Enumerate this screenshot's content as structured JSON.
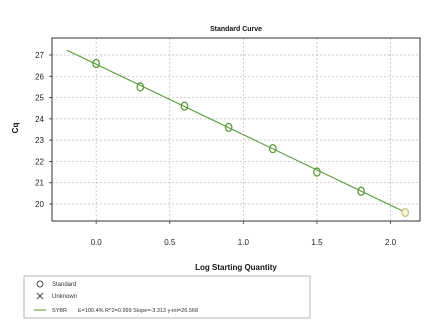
{
  "chart_data": {
    "type": "scatter",
    "title": "Standard Curve",
    "xlabel": "Log Starting Quantity",
    "ylabel": "Cq",
    "xlim": [
      -0.3,
      2.2
    ],
    "ylim": [
      19.2,
      27.8
    ],
    "x_ticks": [
      "0.0",
      "0.5",
      "1.0",
      "1.5",
      "2.0"
    ],
    "y_ticks": [
      "20",
      "21",
      "22",
      "23",
      "24",
      "25",
      "26",
      "27"
    ],
    "grid": true,
    "legend_position": "bottom",
    "series": [
      {
        "name": "Standard",
        "marker": "circle",
        "color": "#5a9a3a",
        "points": [
          {
            "x": 0.0,
            "y": 26.6
          },
          {
            "x": 0.3,
            "y": 25.5
          },
          {
            "x": 0.6,
            "y": 24.6
          },
          {
            "x": 0.9,
            "y": 23.6
          },
          {
            "x": 1.2,
            "y": 22.6
          },
          {
            "x": 1.5,
            "y": 21.5
          },
          {
            "x": 1.8,
            "y": 20.6
          },
          {
            "x": 2.1,
            "y": 19.6
          }
        ]
      },
      {
        "name": "Unknown",
        "marker": "x",
        "color": "#555555",
        "points": []
      }
    ],
    "fit_line": {
      "label": "SYBR",
      "color": "#5a9a3a",
      "slope": -3.313,
      "intercept": 26.568,
      "x_range": [
        -0.2,
        2.1
      ],
      "text": "E=100.4% R^2=0.999 Slope=-3.313 y-int=26.568"
    }
  }
}
